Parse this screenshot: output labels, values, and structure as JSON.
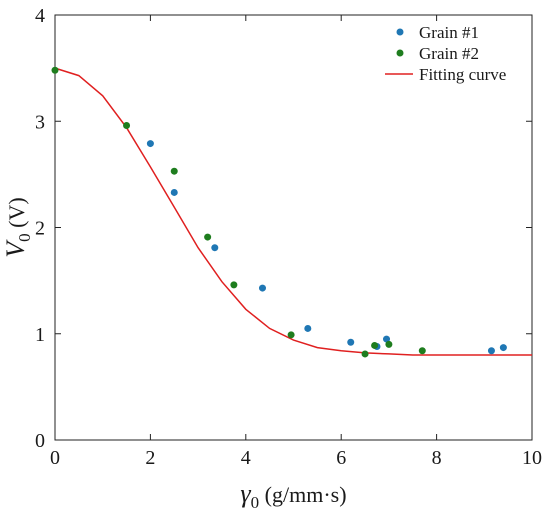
{
  "chart_data": {
    "type": "scatter",
    "xlabel": {
      "symbol": "γ",
      "subscript": "0",
      "unit": " (g/mm·s)"
    },
    "ylabel": {
      "symbol": "V",
      "subscript": "0",
      "unit": " (V)"
    },
    "xlim": [
      0,
      10
    ],
    "ylim": [
      0,
      4
    ],
    "xticks": [
      "0",
      "2",
      "4",
      "6",
      "8",
      "10"
    ],
    "yticks": [
      "0",
      "1",
      "2",
      "3",
      "4"
    ],
    "grid": false,
    "legend_position": "top-right",
    "series": [
      {
        "name": "Grain #1",
        "kind": "points",
        "color": "#1f77b4",
        "x": [
          2.0,
          2.5,
          3.35,
          4.35,
          5.3,
          6.2,
          6.75,
          6.95,
          9.15,
          9.4
        ],
        "y": [
          2.79,
          2.33,
          1.81,
          1.43,
          1.05,
          0.92,
          0.88,
          0.95,
          0.84,
          0.87
        ]
      },
      {
        "name": "Grain #2",
        "kind": "points",
        "color": "#1e7d1e",
        "x": [
          0.0,
          1.5,
          2.5,
          3.2,
          3.75,
          4.95,
          6.5,
          6.7,
          7.0,
          7.7
        ],
        "y": [
          3.48,
          2.96,
          2.53,
          1.91,
          1.46,
          0.99,
          0.81,
          0.89,
          0.9,
          0.84
        ]
      },
      {
        "name": "Fitting curve",
        "kind": "line",
        "color": "#e02020",
        "x": [
          0,
          0.5,
          1,
          1.5,
          2,
          2.5,
          3,
          3.5,
          4,
          4.5,
          5,
          5.5,
          6,
          6.5,
          7,
          7.5,
          8,
          8.5,
          9,
          9.5,
          10
        ],
        "y": [
          3.5,
          3.43,
          3.24,
          2.94,
          2.57,
          2.19,
          1.81,
          1.49,
          1.23,
          1.05,
          0.94,
          0.87,
          0.84,
          0.82,
          0.81,
          0.8,
          0.8,
          0.8,
          0.8,
          0.8,
          0.8
        ]
      }
    ]
  }
}
